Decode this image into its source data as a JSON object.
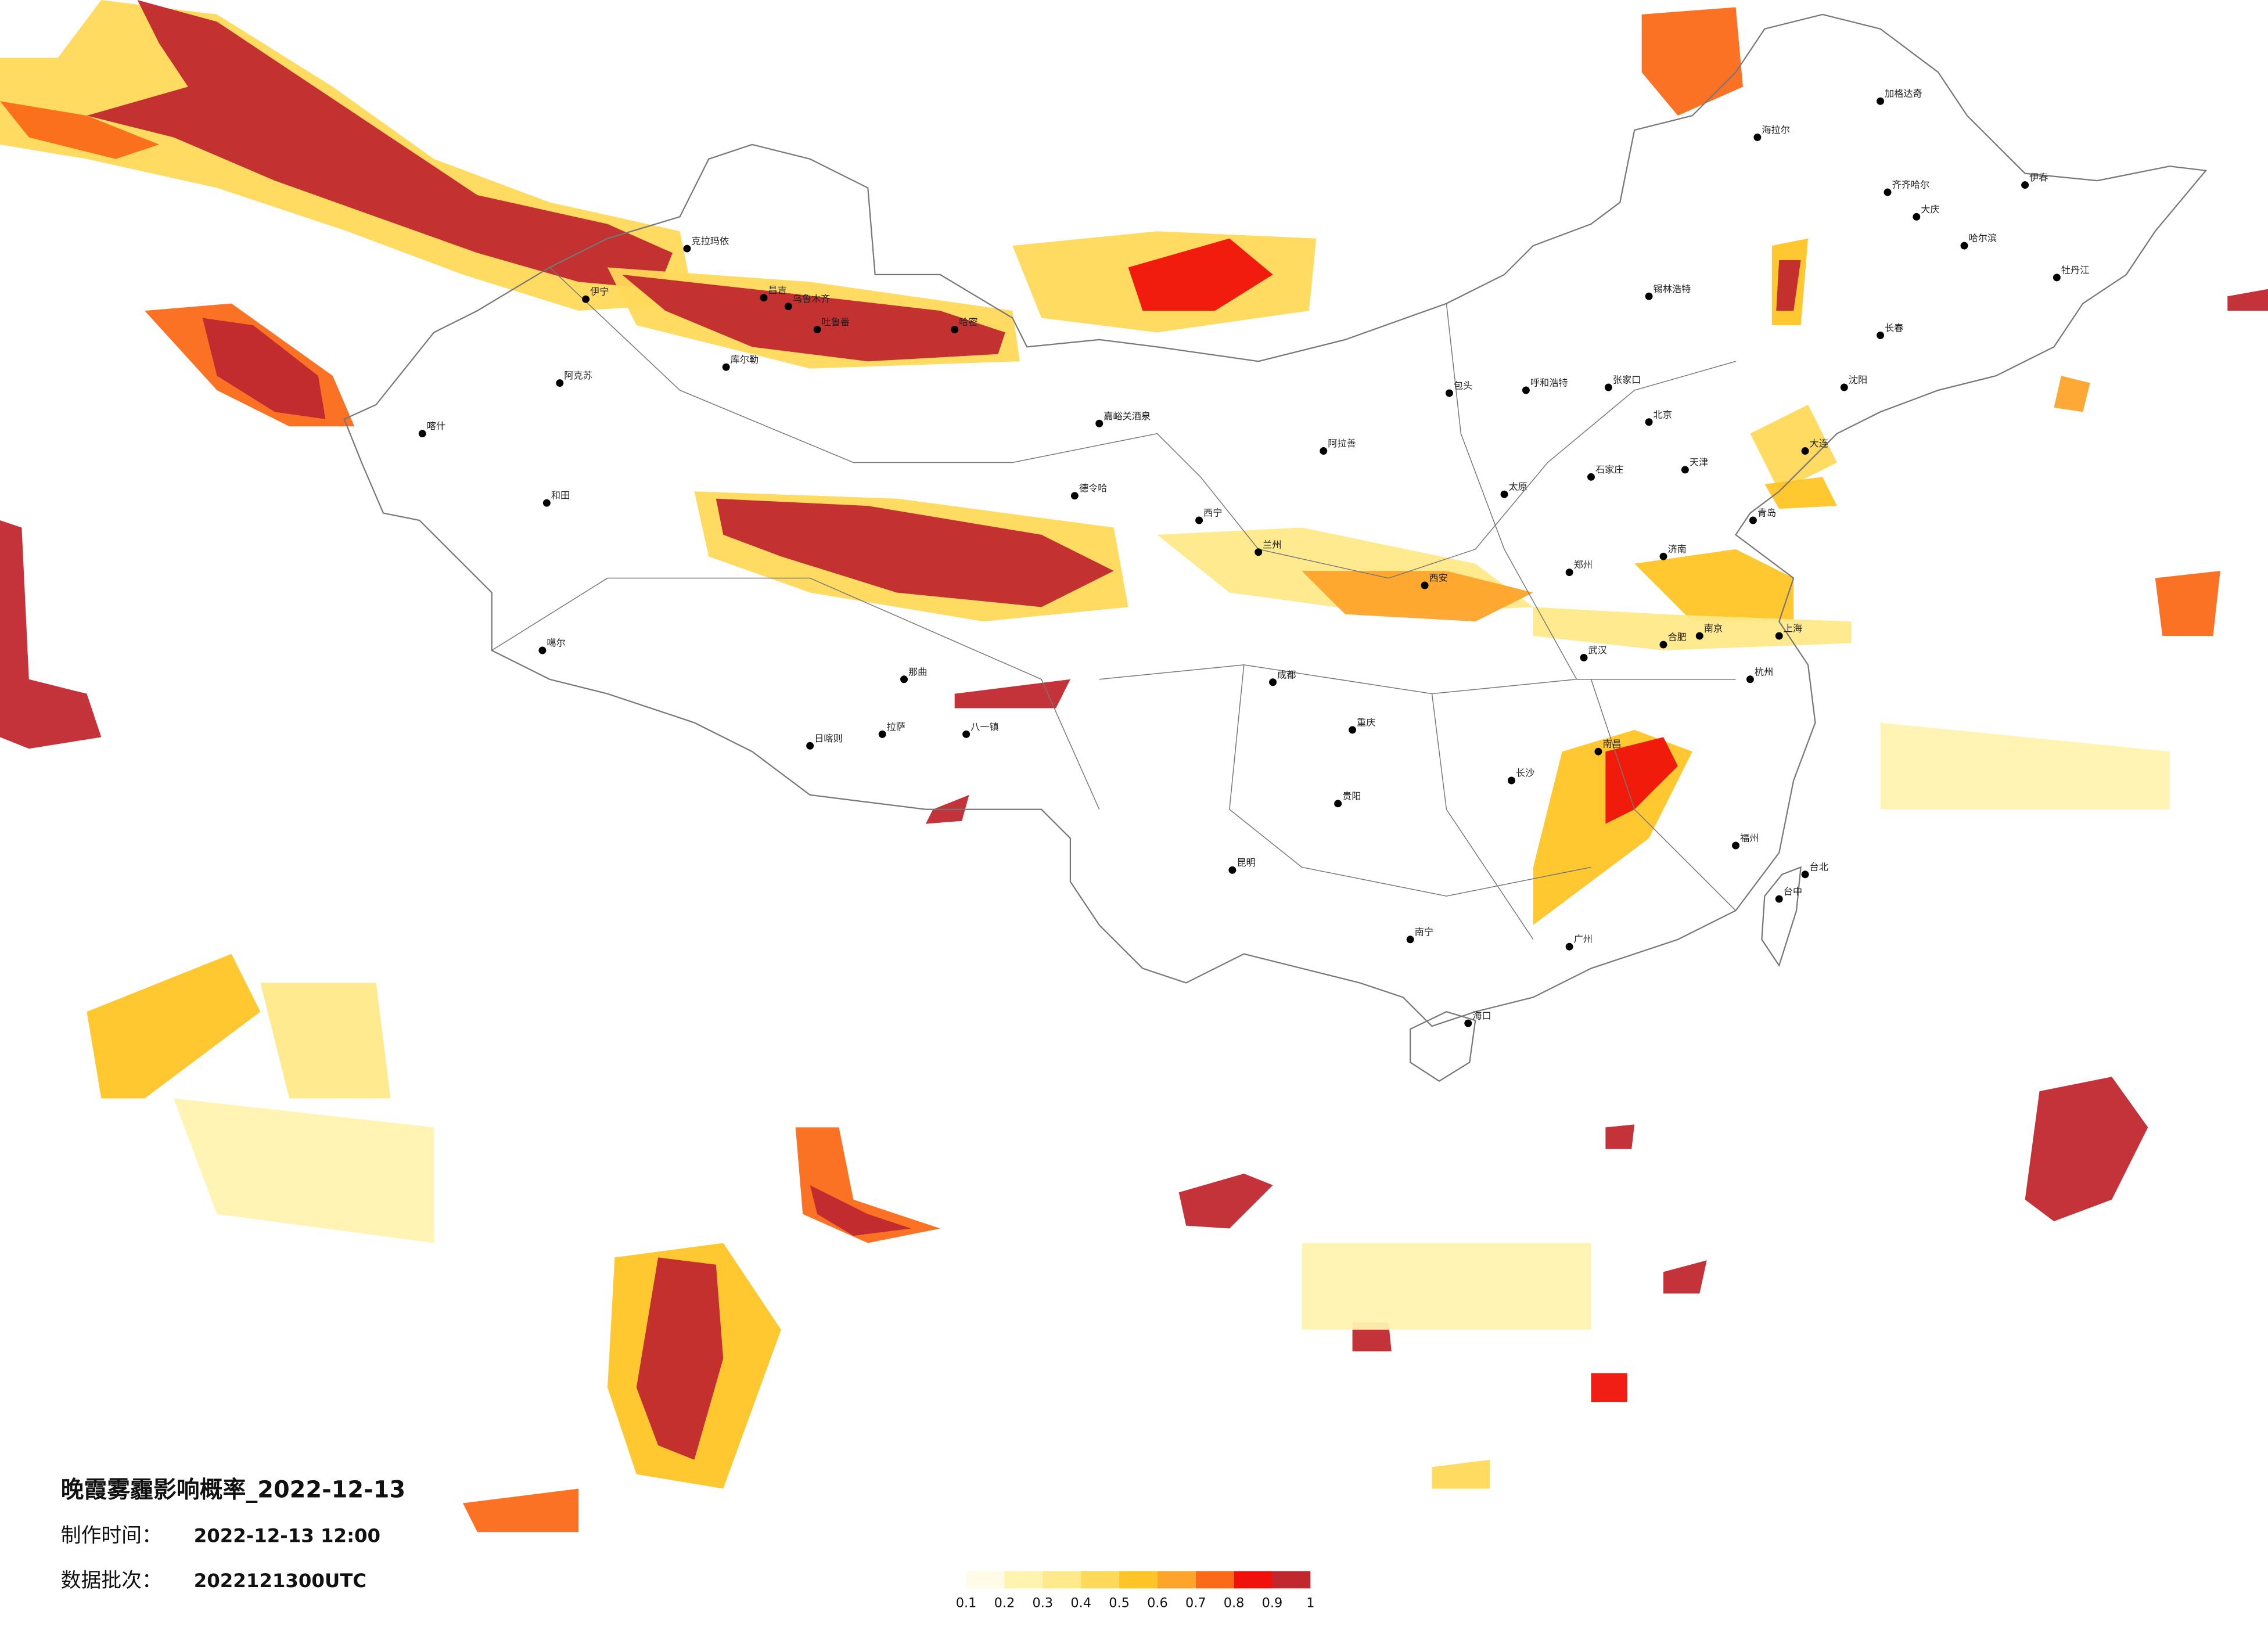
{
  "title": "晚霞雾霾影响概率_2022-12-13",
  "production_time_label": "制作时间：",
  "production_time": "2022-12-13 12:00",
  "batch_label": "数据批次：",
  "batch": "2022121300UTC",
  "legend": {
    "ticks": [
      0.1,
      0.2,
      0.3,
      0.4,
      0.5,
      0.6,
      0.7,
      0.8,
      0.9,
      1
    ],
    "colors": [
      "#fffbe6",
      "#fff3b0",
      "#ffe98a",
      "#ffd95a",
      "#ffc425",
      "#fea42b",
      "#fb6a19",
      "#f0120a",
      "#c0282e"
    ]
  },
  "cities": [
    "克拉玛依",
    "伊宁",
    "昌吉",
    "乌鲁木齐",
    "吐鲁番",
    "哈密",
    "库尔勒",
    "阿克苏",
    "喀什",
    "和田",
    "噶尔",
    "日喀则",
    "拉萨",
    "那曲",
    "八一镇",
    "德令哈",
    "嘉峪关酒泉",
    "西宁",
    "兰州",
    "阿拉善",
    "呼和浩特",
    "包头",
    "北京",
    "天津",
    "石家庄",
    "太原",
    "济南",
    "郑州",
    "西安",
    "成都",
    "重庆",
    "武汉",
    "长沙",
    "南昌",
    "杭州",
    "上海",
    "南京",
    "合肥",
    "福州",
    "广州",
    "南宁",
    "昆明",
    "贵阳",
    "海口",
    "台北",
    "台中",
    "哈尔滨",
    "长春",
    "沈阳",
    "大连",
    "青岛",
    "齐齐哈尔",
    "大庆",
    "伊春",
    "加格达奇",
    "海拉尔",
    "牡丹江",
    "锡林浩特",
    "张家口"
  ]
}
